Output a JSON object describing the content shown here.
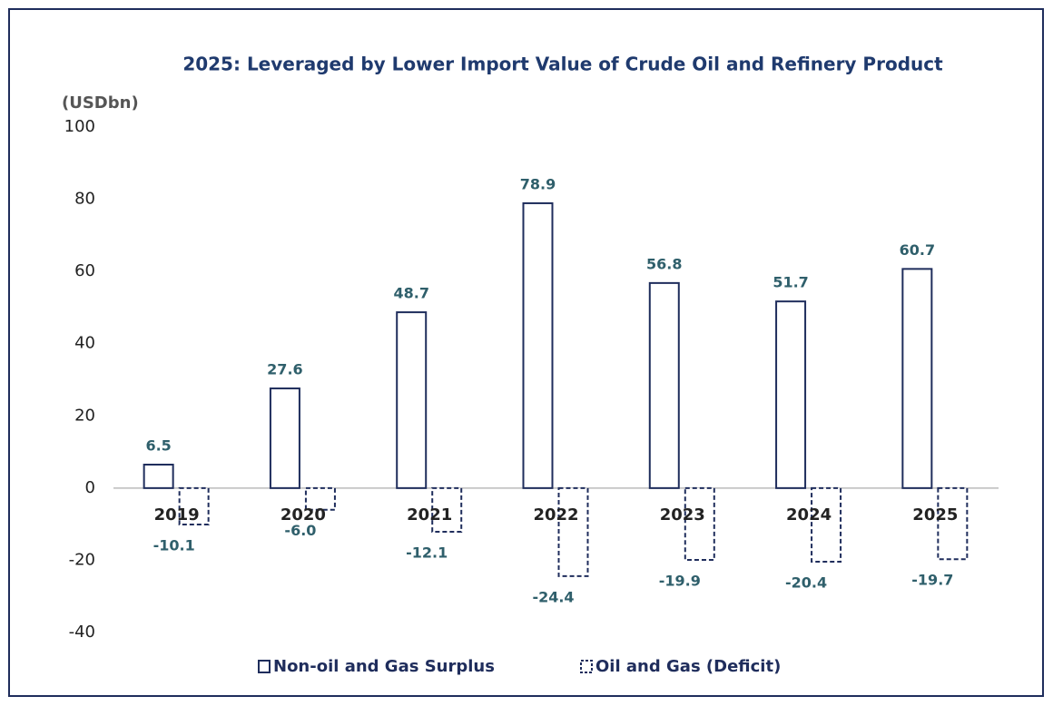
{
  "chart_data": {
    "type": "bar",
    "title": "2025: Leveraged by Lower Import Value of Crude Oil and Refinery Product",
    "y_label": "(USDbn)",
    "categories": [
      "2019",
      "2020",
      "2021",
      "2022",
      "2023",
      "2024",
      "2025"
    ],
    "series": [
      {
        "name": "Non-oil and Gas Surplus",
        "color": "#1f2d5c",
        "dashed": false,
        "values": [
          6.5,
          27.6,
          48.7,
          78.9,
          56.8,
          51.7,
          60.7
        ],
        "value_labels": [
          "6.5",
          "27.6",
          "48.7",
          "78.9",
          "56.8",
          "51.7",
          "60.7"
        ]
      },
      {
        "name": "Oil and Gas (Deficit)",
        "color": "#1f2d5c",
        "dashed": true,
        "values": [
          -10.1,
          -6.0,
          -12.1,
          -24.4,
          -19.9,
          -20.4,
          -19.7
        ],
        "value_labels": [
          "-10.1",
          "-6.0",
          "-12.1",
          "-24.4",
          "-19.9",
          "-20.4",
          "-19.7"
        ]
      }
    ],
    "ylim": [
      -40,
      100
    ],
    "yticks": [
      -40,
      -20,
      0,
      20,
      40,
      60,
      80,
      100
    ],
    "grid": false
  }
}
